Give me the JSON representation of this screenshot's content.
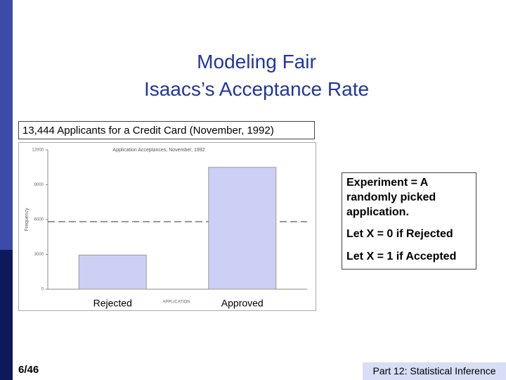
{
  "slide_title": [
    "Modeling Fair",
    "Isaacs’s Acceptance Rate"
  ],
  "caption": "13,444 Applicants for a Credit Card (November, 1992)",
  "chart_data": {
    "type": "bar",
    "title": "Application Acceptances, November, 1992",
    "ylabel": "Frequency",
    "xlabel": "APPLICATION",
    "categories": [
      "Rejected",
      "Approved"
    ],
    "values": [
      2945,
      10499
    ],
    "color": "#ccd0f5",
    "ylim": [
      0,
      12000
    ],
    "yticks": [
      0,
      3000,
      6000,
      9000,
      12000
    ],
    "grid": false
  },
  "textbox": [
    "Experiment = A randomly picked application.",
    "Let X = 0 if Rejected",
    "Let X = 1 if Accepted"
  ],
  "footer": {
    "page": "6/46",
    "section": "Part 12: Statistical Inference"
  }
}
